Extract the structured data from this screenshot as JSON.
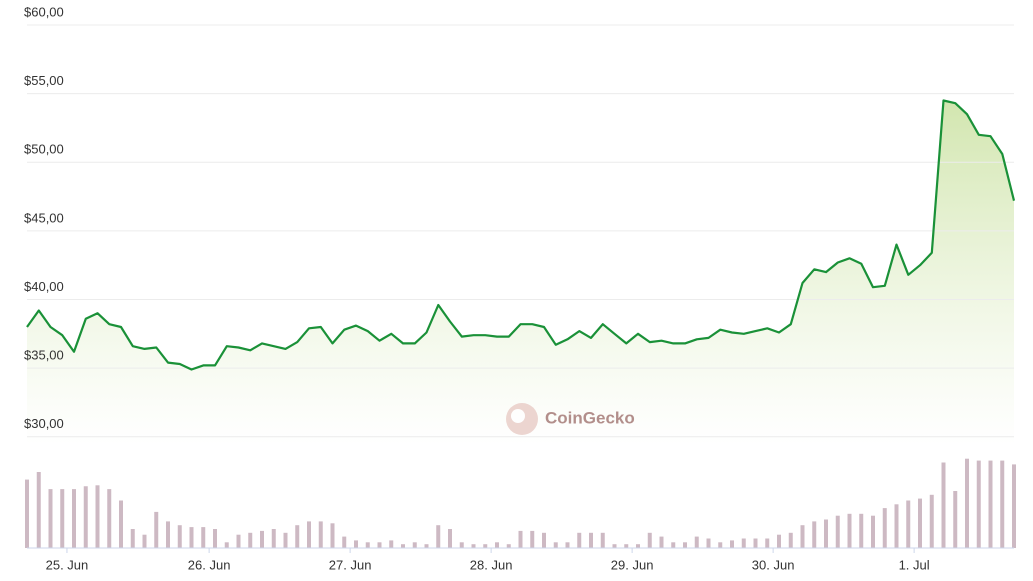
{
  "chart_data": {
    "type": "line",
    "watermark": "CoinGecko",
    "xlim": [
      0,
      84
    ],
    "xticks": [
      {
        "value": 3.4,
        "label": "25. Jun"
      },
      {
        "value": 15.5,
        "label": "26. Jun"
      },
      {
        "value": 27.5,
        "label": "27. Jun"
      },
      {
        "value": 39.5,
        "label": "28. Jun"
      },
      {
        "value": 51.5,
        "label": "29. Jun"
      },
      {
        "value": 63.5,
        "label": "30. Jun"
      },
      {
        "value": 75.5,
        "label": "1. Jul"
      }
    ],
    "ylim": [
      29.4,
      60
    ],
    "yticks": [
      {
        "value": 30,
        "label": "$30,00"
      },
      {
        "value": 35,
        "label": "$35,00"
      },
      {
        "value": 40,
        "label": "$40,00"
      },
      {
        "value": 45,
        "label": "$45,00"
      },
      {
        "value": 50,
        "label": "$50,00"
      },
      {
        "value": 55,
        "label": "$55,00"
      },
      {
        "value": 60,
        "label": "$60,00"
      }
    ],
    "y2lim": [
      0,
      100
    ],
    "grid": true,
    "series": [
      {
        "color": "#1a9138",
        "values": [
          38.0,
          39.2,
          38.0,
          37.4,
          36.2,
          38.6,
          39.0,
          38.2,
          38.0,
          36.6,
          36.4,
          36.5,
          35.4,
          35.3,
          34.9,
          35.2,
          35.2,
          36.6,
          36.5,
          36.3,
          36.8,
          36.6,
          36.4,
          36.9,
          37.9,
          38.0,
          36.8,
          37.8,
          38.1,
          37.7,
          37.0,
          37.5,
          36.8,
          36.8,
          37.6,
          39.6,
          38.4,
          37.3,
          37.4,
          37.4,
          37.3,
          37.3,
          38.2,
          38.2,
          38.0,
          36.7,
          37.1,
          37.7,
          37.2,
          38.2,
          37.5,
          36.8,
          37.5,
          36.9,
          37.0,
          36.8,
          36.8,
          37.1,
          37.2,
          37.8,
          37.6,
          37.5,
          37.7,
          37.9,
          37.6,
          38.2,
          41.2,
          42.2,
          42.0,
          42.7,
          43.0,
          42.6,
          40.9,
          41.0,
          44.0,
          41.8,
          42.5,
          43.4,
          54.5,
          54.3,
          53.5,
          52.0,
          51.9,
          50.6,
          47.2
        ]
      },
      {
        "color": "#cdb9c3",
        "axis": "y2",
        "values": [
          72,
          80,
          62,
          62,
          62,
          65,
          66,
          62,
          50,
          20,
          14,
          38,
          28,
          24,
          22,
          22,
          20,
          6,
          14,
          16,
          18,
          20,
          16,
          24,
          28,
          28,
          26,
          12,
          8,
          6,
          6,
          8,
          4,
          6,
          4,
          24,
          20,
          6,
          4,
          4,
          6,
          4,
          18,
          18,
          16,
          6,
          6,
          16,
          16,
          16,
          4,
          4,
          4,
          16,
          12,
          6,
          6,
          12,
          10,
          6,
          8,
          10,
          10,
          10,
          14,
          16,
          24,
          28,
          30,
          34,
          36,
          36,
          34,
          42,
          46,
          50,
          52,
          56,
          90,
          60,
          94,
          92,
          92,
          92,
          88
        ]
      }
    ]
  }
}
